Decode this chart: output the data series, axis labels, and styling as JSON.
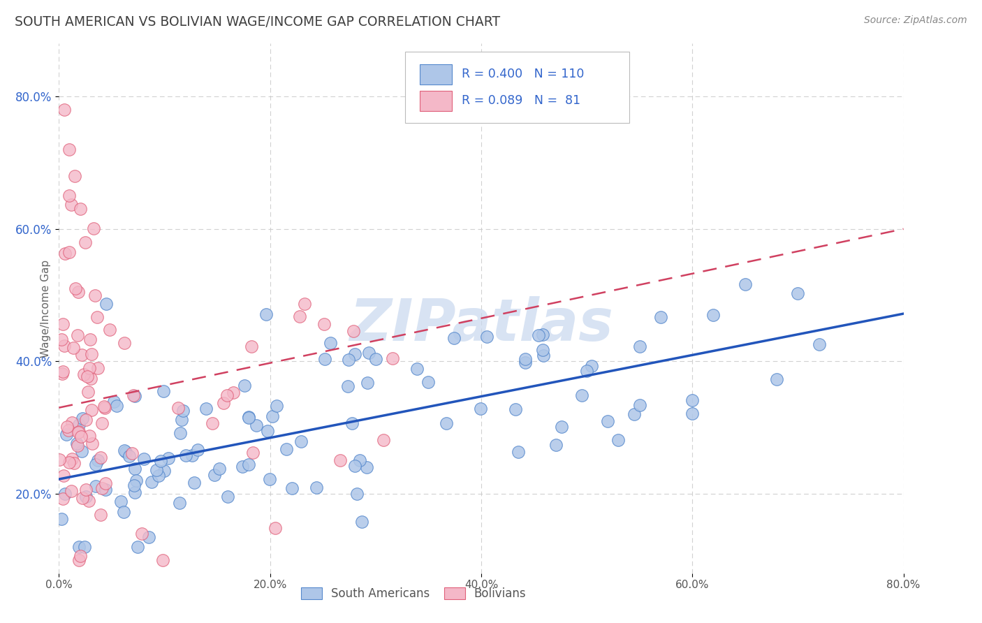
{
  "title": "SOUTH AMERICAN VS BOLIVIAN WAGE/INCOME GAP CORRELATION CHART",
  "source_text": "Source: ZipAtlas.com",
  "ylabel": "Wage/Income Gap",
  "xmin": 0.0,
  "xmax": 0.8,
  "ymin": 0.08,
  "ymax": 0.88,
  "blue_R": 0.4,
  "blue_N": 110,
  "pink_R": 0.089,
  "pink_N": 81,
  "blue_color": "#aec6e8",
  "blue_edge_color": "#5588cc",
  "pink_color": "#f4b8c8",
  "pink_edge_color": "#e0607a",
  "blue_line_color": "#2255bb",
  "pink_line_color": "#d04060",
  "watermark_color": "#c8d8ee",
  "watermark": "ZIPatlas",
  "legend_entries": [
    "South Americans",
    "Bolivians"
  ],
  "background_color": "#ffffff",
  "grid_color": "#cccccc",
  "title_color": "#404040",
  "axis_tick_color": "#3366cc"
}
